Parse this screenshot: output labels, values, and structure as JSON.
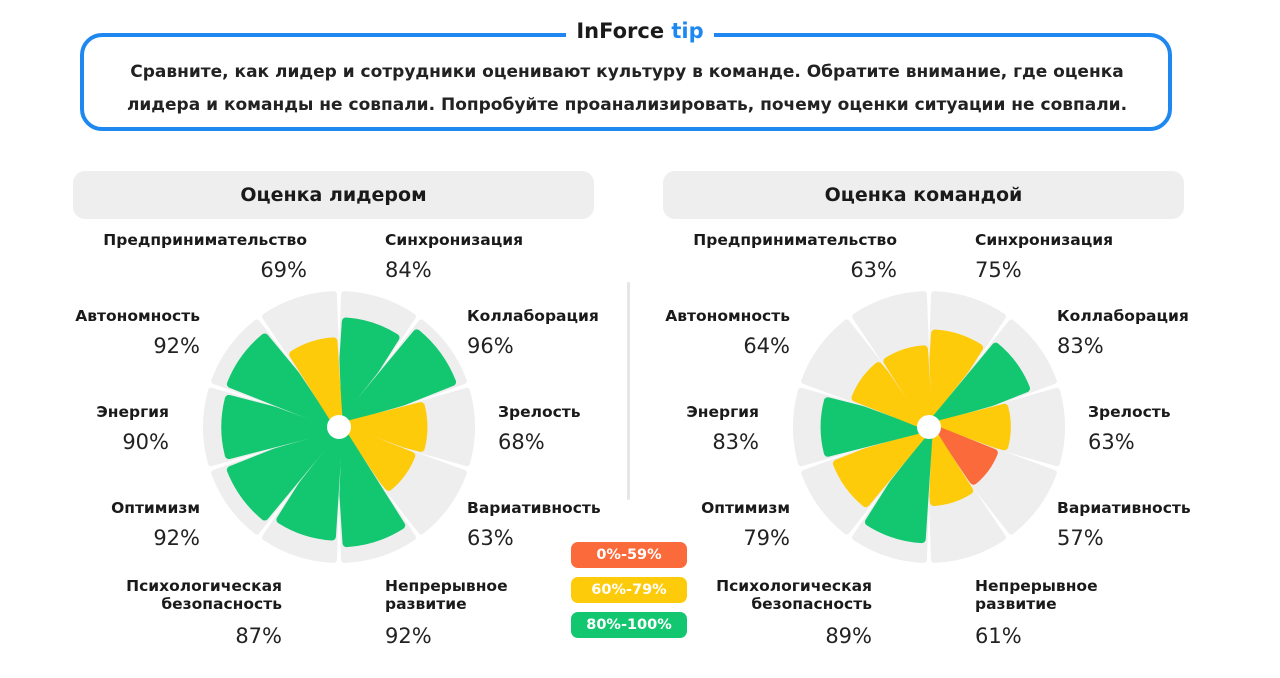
{
  "tip": {
    "brand": "InForce",
    "accent_word": "tip",
    "line1": "Сравните, как лидер и сотрудники оценивают культуру в команде. Обратите внимание, где оценка",
    "line2": "лидера и команды не совпали. Попробуйте проанализировать, почему оценки ситуации не совпали."
  },
  "colors": {
    "low": "#fb6a3a",
    "mid": "#fdcb0a",
    "high": "#13c771",
    "track": "#eeeeee",
    "accent": "#1e88f0"
  },
  "legend": [
    {
      "label": "0%-59%",
      "color": "#fb6a3a"
    },
    {
      "label": "60%-79%",
      "color": "#fdcb0a"
    },
    {
      "label": "80%-100%",
      "color": "#13c771"
    }
  ],
  "chart_data": [
    {
      "type": "radial-bar",
      "title": "Оценка лидером",
      "max": 100,
      "categories": [
        "Синхронизация",
        "Коллаборация",
        "Зрелость",
        "Вариативность",
        "Непрерывное развитие",
        "Психологическая безопасность",
        "Оптимизм",
        "Энергия",
        "Автономность",
        "Предпринимательство"
      ],
      "values": [
        84,
        96,
        68,
        63,
        92,
        87,
        92,
        90,
        92,
        69
      ],
      "labels": [
        "84%",
        "96%",
        "68%",
        "63%",
        "92%",
        "87%",
        "92%",
        "90%",
        "92%",
        "69%"
      ]
    },
    {
      "type": "radial-bar",
      "title": "Оценка командой",
      "max": 100,
      "categories": [
        "Синхронизация",
        "Коллаборация",
        "Зрелость",
        "Вариативность",
        "Непрерывное развитие",
        "Психологическая безопасность",
        "Оптимизм",
        "Энергия",
        "Автономность",
        "Предпринимательство"
      ],
      "values": [
        75,
        83,
        63,
        57,
        61,
        89,
        79,
        83,
        64,
        63
      ],
      "labels": [
        "75%",
        "83%",
        "63%",
        "57%",
        "61%",
        "89%",
        "79%",
        "83%",
        "64%",
        "63%"
      ]
    }
  ],
  "label_lines": {
    "Непрерывное развитие": [
      "Непрерывное",
      "развитие"
    ],
    "Психологическая безопасность": [
      "Психологическая",
      "безопасность"
    ]
  }
}
